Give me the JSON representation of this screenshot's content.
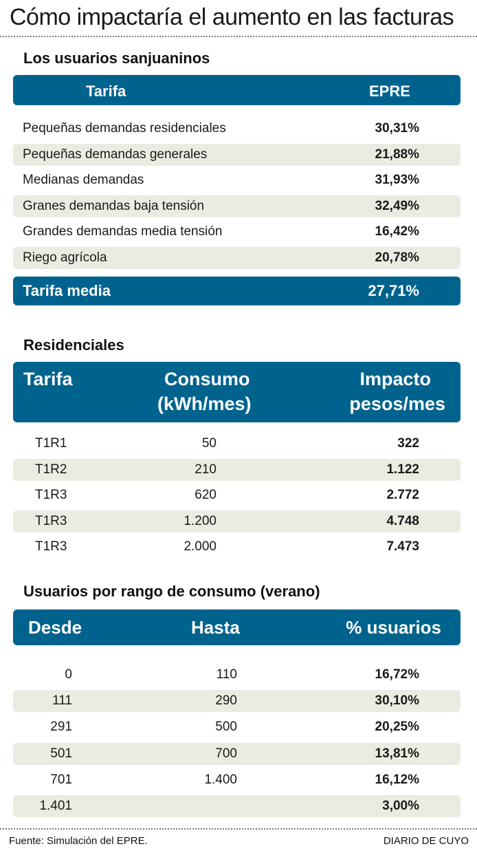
{
  "title": "Cómo impactaría el aumento en las facturas",
  "section1": {
    "title": "Los usuarios sanjuaninos",
    "headers": {
      "tarifa": "Tarifa",
      "epre": "EPRE"
    },
    "rows": [
      {
        "label": "Pequeñas demandas residenciales",
        "value": "30,31%"
      },
      {
        "label": "Pequeñas demandas generales",
        "value": "21,88%"
      },
      {
        "label": "Medianas demandas",
        "value": "31,93%"
      },
      {
        "label": "Granes demandas baja tensión",
        "value": "32,49%"
      },
      {
        "label": "Grandes demandas media tensión",
        "value": "16,42%"
      },
      {
        "label": "Riego agrícola",
        "value": "20,78%"
      }
    ],
    "media": {
      "label": "Tarifa media",
      "value": "27,71%"
    }
  },
  "section2": {
    "title": "Residenciales",
    "headers": {
      "tarifa": "Tarifa",
      "consumo_1": "Consumo",
      "consumo_2": "(kWh/mes)",
      "impacto_1": "Impacto",
      "impacto_2": "pesos/mes"
    },
    "rows": [
      {
        "tarifa": "T1R1",
        "consumo": "50",
        "impacto": "322"
      },
      {
        "tarifa": "T1R2",
        "consumo": "210",
        "impacto": "1.122"
      },
      {
        "tarifa": "T1R3",
        "consumo": "620",
        "impacto": "2.772"
      },
      {
        "tarifa": "T1R3",
        "consumo": "1.200",
        "impacto": "4.748"
      },
      {
        "tarifa": "T1R3",
        "consumo": "2.000",
        "impacto": "7.473"
      }
    ]
  },
  "section3": {
    "title": "Usuarios por rango de consumo (verano)",
    "headers": {
      "desde": "Desde",
      "hasta": "Hasta",
      "usuarios": "% usuarios"
    },
    "rows": [
      {
        "desde": "0",
        "hasta": "110",
        "usuarios": "16,72%"
      },
      {
        "desde": "111",
        "hasta": "290",
        "usuarios": "30,10%"
      },
      {
        "desde": "291",
        "hasta": "500",
        "usuarios": "20,25%"
      },
      {
        "desde": "501",
        "hasta": "700",
        "usuarios": "13,81%"
      },
      {
        "desde": "701",
        "hasta": "1.400",
        "usuarios": "16,12%"
      },
      {
        "desde": "1.401",
        "hasta": "",
        "usuarios": "3,00%"
      }
    ]
  },
  "footer": {
    "source": "Fuente: Simulación del EPRE.",
    "credit": "DIARIO DE CUYO"
  },
  "colors": {
    "header": "#00638d",
    "shade": "#ecebe2"
  }
}
